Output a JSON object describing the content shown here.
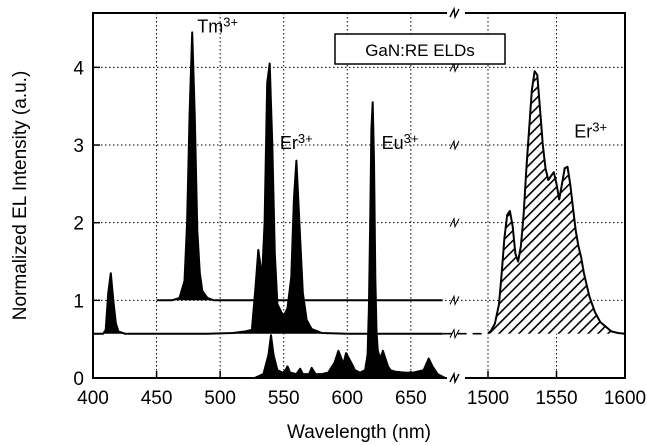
{
  "chart_data": {
    "type": "area",
    "title": "",
    "legend_box": "GaN:RE ELDs",
    "xlabel": "Wavelength (nm)",
    "ylabel": "Normalized EL Intensity (a.u.)",
    "ylim": [
      0,
      4.7
    ],
    "yticks": [
      0,
      1,
      2,
      3,
      4
    ],
    "grid": true,
    "axis_break": true,
    "x_segments": [
      {
        "xlim": [
          400,
          680
        ],
        "ticks": [
          400,
          450,
          500,
          550,
          600,
          650
        ]
      },
      {
        "xlim": [
          1500,
          1600
        ],
        "ticks": [
          1500,
          1550,
          1600
        ]
      }
    ],
    "annotations": [
      {
        "base": "Tm",
        "sup": "3+",
        "x": 482,
        "y": 4.45
      },
      {
        "base": "Er",
        "sup": "3+",
        "x": 547,
        "y": 2.95
      },
      {
        "base": "Eu",
        "sup": "3+",
        "x": 627,
        "y": 2.95
      },
      {
        "base": "Er",
        "sup": "3+",
        "x": 1563,
        "y": 3.1
      }
    ],
    "series": [
      {
        "name": "Tm3+",
        "fill": "black",
        "baseline": 1.0,
        "x": [
          450,
          462,
          468,
          472,
          474,
          476,
          478,
          480,
          482,
          484,
          486,
          490,
          495,
          500,
          520,
          540,
          560,
          600,
          640,
          675
        ],
        "y": [
          1.0,
          1.0,
          1.03,
          1.25,
          2.0,
          3.4,
          4.45,
          3.4,
          1.9,
          1.35,
          1.12,
          1.03,
          1.0,
          1.0,
          1.0,
          1.0,
          1.0,
          1.0,
          1.0,
          1.0
        ]
      },
      {
        "name": "Er3+ (visible)",
        "fill": "black",
        "baseline": 0.57,
        "x": [
          400,
          408,
          410,
          412,
          414,
          416,
          418,
          420,
          425,
          440,
          460,
          490,
          510,
          520,
          525,
          528,
          530,
          533,
          535,
          537,
          539,
          541,
          543,
          545,
          548,
          550,
          553,
          556,
          558,
          560,
          562,
          565,
          568,
          572,
          580,
          600,
          640,
          660,
          675
        ],
        "y": [
          0.57,
          0.57,
          0.62,
          1.1,
          1.35,
          1.0,
          0.7,
          0.6,
          0.57,
          0.57,
          0.57,
          0.57,
          0.58,
          0.6,
          0.62,
          1.2,
          1.65,
          1.3,
          2.0,
          3.8,
          4.05,
          3.0,
          1.6,
          0.95,
          0.85,
          0.8,
          0.9,
          1.3,
          2.3,
          2.8,
          2.1,
          1.1,
          0.75,
          0.63,
          0.58,
          0.57,
          0.57,
          0.57,
          0.57
        ]
      },
      {
        "name": "Eu3+",
        "fill": "black",
        "baseline": 0.0,
        "x": [
          527,
          534,
          538,
          540,
          542,
          545,
          550,
          553,
          555,
          560,
          563,
          565,
          570,
          572,
          575,
          580,
          585,
          590,
          593,
          597,
          599,
          603,
          606,
          610,
          614,
          616,
          617,
          618,
          619,
          620,
          621,
          622,
          623,
          624,
          626,
          628,
          630,
          632,
          634,
          638,
          645,
          652,
          660,
          664,
          667,
          671,
          677
        ],
        "y": [
          0.0,
          0.05,
          0.3,
          0.55,
          0.3,
          0.1,
          0.06,
          0.15,
          0.07,
          0.05,
          0.12,
          0.05,
          0.05,
          0.13,
          0.05,
          0.05,
          0.07,
          0.2,
          0.35,
          0.18,
          0.32,
          0.2,
          0.1,
          0.07,
          0.1,
          0.3,
          0.9,
          2.0,
          3.2,
          3.55,
          2.8,
          1.3,
          0.6,
          0.35,
          0.25,
          0.35,
          0.25,
          0.15,
          0.1,
          0.08,
          0.07,
          0.07,
          0.1,
          0.25,
          0.15,
          0.05,
          0.0
        ]
      },
      {
        "name": "Er3+ (IR)",
        "fill": "hatched",
        "baseline": 0.57,
        "x": [
          1500,
          1502,
          1505,
          1508,
          1510,
          1512,
          1514,
          1516,
          1518,
          1520,
          1522,
          1524,
          1526,
          1528,
          1530,
          1532,
          1534,
          1536,
          1538,
          1540,
          1542,
          1544,
          1546,
          1548,
          1550,
          1552,
          1554,
          1556,
          1558,
          1560,
          1562,
          1564,
          1566,
          1568,
          1570,
          1574,
          1578,
          1582,
          1586,
          1590,
          1595,
          1600
        ],
        "y": [
          0.58,
          0.6,
          0.7,
          0.95,
          1.35,
          1.8,
          2.1,
          2.15,
          1.95,
          1.6,
          1.5,
          1.7,
          2.1,
          2.7,
          3.2,
          3.7,
          3.95,
          3.9,
          3.45,
          3.0,
          2.7,
          2.55,
          2.6,
          2.65,
          2.5,
          2.3,
          2.5,
          2.7,
          2.72,
          2.5,
          2.2,
          1.9,
          1.7,
          1.55,
          1.35,
          1.05,
          0.85,
          0.72,
          0.66,
          0.6,
          0.58,
          0.57
        ]
      }
    ],
    "reference_lines": [
      {
        "y": 0.57,
        "from_x": 675,
        "to_x": 1500,
        "style": "dashed"
      }
    ]
  }
}
